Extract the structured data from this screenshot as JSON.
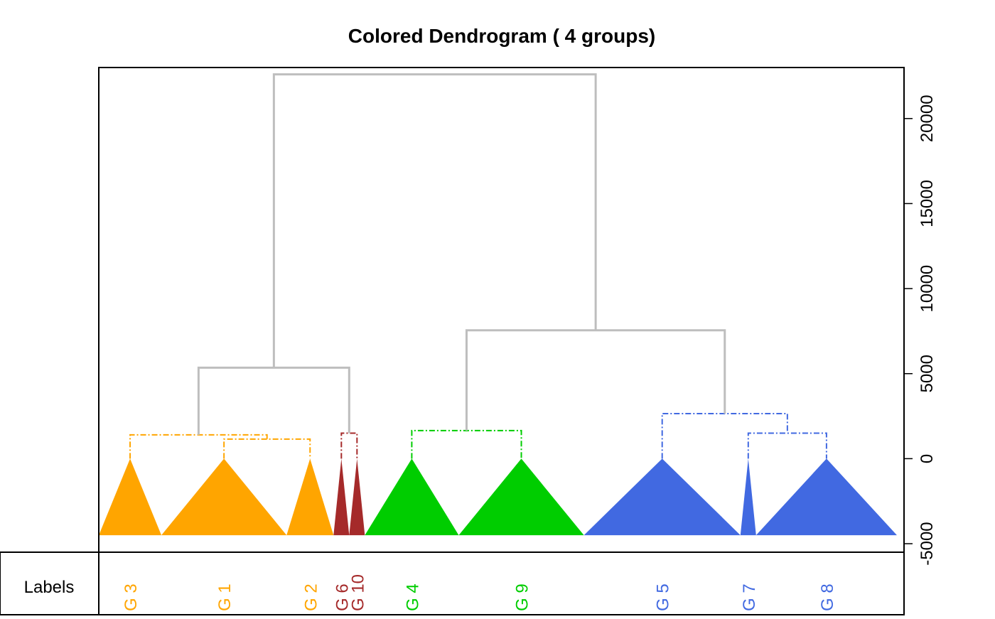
{
  "chart_data": {
    "type": "dendrogram",
    "title": "Colored Dendrogram ( 4  groups)",
    "ylabel": "",
    "xlabel": "",
    "ylim": [
      -5500,
      23000
    ],
    "yticks": [
      -5000,
      0,
      5000,
      10000,
      15000,
      20000
    ],
    "ytick_labels": [
      "-5000",
      "0",
      "5000",
      "10000",
      "15000",
      "20000"
    ],
    "axis_side": "right",
    "baseline": -4500,
    "label_panel_title": "Labels",
    "branch_color": "#bebebe",
    "leaves": [
      {
        "label": "G 3",
        "group": 1,
        "color": "#ffa500",
        "width": 2.0
      },
      {
        "label": "G 1",
        "group": 1,
        "color": "#ffa500",
        "width": 4.0
      },
      {
        "label": "G 2",
        "group": 1,
        "color": "#ffa500",
        "width": 1.5
      },
      {
        "label": "G 6",
        "group": 2,
        "color": "#a52a2a",
        "width": 0.5
      },
      {
        "label": "G 10",
        "group": 2,
        "color": "#a52a2a",
        "width": 0.5
      },
      {
        "label": "G 4",
        "group": 3,
        "color": "#00cd00",
        "width": 3.0
      },
      {
        "label": "G 9",
        "group": 3,
        "color": "#00cd00",
        "width": 4.0
      },
      {
        "label": "G 5",
        "group": 4,
        "color": "#4169e1",
        "width": 5.0
      },
      {
        "label": "G 7",
        "group": 4,
        "color": "#4169e1",
        "width": 0.5
      },
      {
        "label": "G 8",
        "group": 4,
        "color": "#4169e1",
        "width": 4.5
      }
    ],
    "merges": [
      {
        "id": "m1",
        "left": "G 1",
        "right": "G 2",
        "height": 1150,
        "color": "#ffa500",
        "style": "dashed"
      },
      {
        "id": "m2",
        "left": "G 3",
        "right": "m1",
        "height": 1400,
        "color": "#ffa500",
        "style": "dashed"
      },
      {
        "id": "m3",
        "left": "G 6",
        "right": "G 10",
        "height": 1500,
        "color": "#a52a2a",
        "style": "dashed"
      },
      {
        "id": "m4",
        "left": "m2",
        "right": "m3",
        "height": 5350,
        "color": "#bebebe",
        "style": "solid"
      },
      {
        "id": "m5",
        "left": "G 4",
        "right": "G 9",
        "height": 1650,
        "color": "#00cd00",
        "style": "dashed"
      },
      {
        "id": "m6",
        "left": "G 7",
        "right": "G 8",
        "height": 1500,
        "color": "#4169e1",
        "style": "dashed"
      },
      {
        "id": "m7",
        "left": "G 5",
        "right": "m6",
        "height": 2650,
        "color": "#4169e1",
        "style": "dashed"
      },
      {
        "id": "m8",
        "left": "m5",
        "right": "m7",
        "height": 7550,
        "color": "#bebebe",
        "style": "solid"
      },
      {
        "id": "m9",
        "left": "m4",
        "right": "m8",
        "height": 22600,
        "color": "#bebebe",
        "style": "solid"
      }
    ]
  }
}
